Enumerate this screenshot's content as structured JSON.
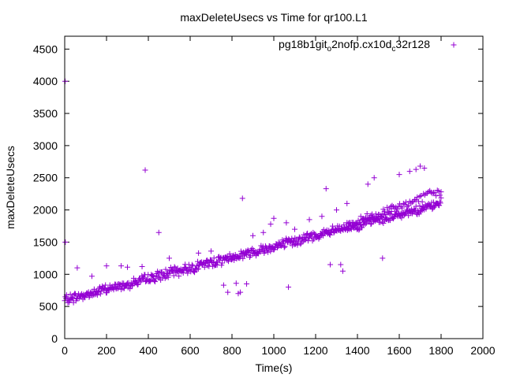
{
  "chart_data": {
    "type": "scatter",
    "title": "maxDeleteUsecs vs Time for qr100.L1",
    "xlabel": "Time(s)",
    "ylabel": "maxDeleteUsecs",
    "xlim": [
      0,
      2000
    ],
    "ylim": [
      0,
      4700
    ],
    "x_ticks": [
      "0",
      "200",
      "400",
      "600",
      "800",
      "1000",
      "1200",
      "1400",
      "1600",
      "1800",
      "2000"
    ],
    "y_ticks": [
      "0",
      "500",
      "1000",
      "1500",
      "2000",
      "2500",
      "3000",
      "3500",
      "4000",
      "4500"
    ],
    "grid": false,
    "legend_position": "top-right",
    "legend": {
      "parts": [
        {
          "text": "pg18b1git",
          "sub": false
        },
        {
          "text": "o",
          "sub": true
        },
        {
          "text": "2nofp.cx10d",
          "sub": false
        },
        {
          "text": "c",
          "sub": true
        },
        {
          "text": "32r128",
          "sub": false
        }
      ]
    },
    "series": [
      {
        "color": "#9400d3",
        "marker": "plus",
        "main_trend": {
          "x_start": 0,
          "x_end": 1800,
          "y_start": 600,
          "y_end": 2100,
          "spread": 90,
          "step": 3
        },
        "upper_band": {
          "x_start": 1350,
          "x_end": 1800,
          "y_start": 1750,
          "y_end": 2300,
          "spread": 80,
          "step": 6
        },
        "outliers": [
          [
            2,
            4000
          ],
          [
            3,
            1500
          ],
          [
            60,
            1100
          ],
          [
            130,
            970
          ],
          [
            200,
            1130
          ],
          [
            270,
            1130
          ],
          [
            300,
            1110
          ],
          [
            370,
            1120
          ],
          [
            385,
            2620
          ],
          [
            450,
            1650
          ],
          [
            500,
            1250
          ],
          [
            640,
            1330
          ],
          [
            700,
            1360
          ],
          [
            760,
            830
          ],
          [
            780,
            720
          ],
          [
            800,
            1250
          ],
          [
            820,
            860
          ],
          [
            830,
            700
          ],
          [
            840,
            720
          ],
          [
            850,
            2180
          ],
          [
            870,
            850
          ],
          [
            900,
            1600
          ],
          [
            950,
            1650
          ],
          [
            985,
            1780
          ],
          [
            1000,
            1870
          ],
          [
            1060,
            1800
          ],
          [
            1070,
            800
          ],
          [
            1100,
            1700
          ],
          [
            1170,
            1850
          ],
          [
            1230,
            1900
          ],
          [
            1250,
            2330
          ],
          [
            1270,
            1150
          ],
          [
            1300,
            2000
          ],
          [
            1320,
            1150
          ],
          [
            1330,
            1050
          ],
          [
            1350,
            2100
          ],
          [
            1450,
            2400
          ],
          [
            1480,
            2500
          ],
          [
            1520,
            1250
          ],
          [
            1600,
            2550
          ],
          [
            1650,
            2600
          ],
          [
            1680,
            2630
          ],
          [
            1700,
            2680
          ],
          [
            1720,
            2650
          ]
        ]
      }
    ]
  }
}
